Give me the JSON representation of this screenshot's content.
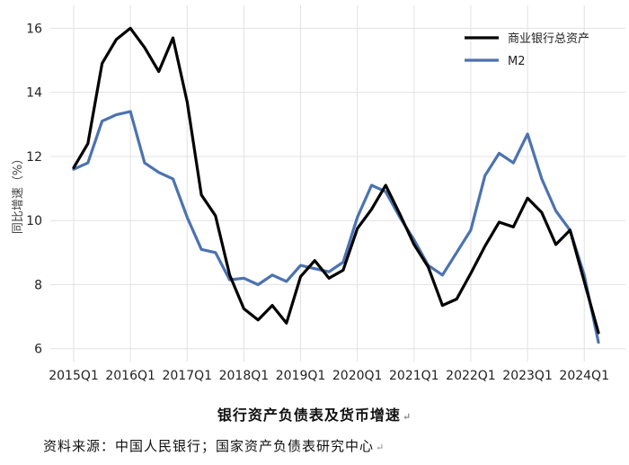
{
  "chart_data": {
    "type": "line",
    "title": "银行资产负债表及货币增速",
    "source": "资料来源：中国人民银行；国家资产负债表研究中心",
    "ylabel": "同比增速（%）",
    "xlabel": "",
    "ylim": [
      5.6,
      16.6
    ],
    "yticks": [
      6,
      8,
      10,
      12,
      14,
      16
    ],
    "xtick_labels": [
      "2015Q1",
      "2016Q1",
      "2017Q1",
      "2018Q1",
      "2019Q1",
      "2020Q1",
      "2021Q1",
      "2022Q1",
      "2023Q1",
      "2024Q1"
    ],
    "grid": true,
    "legend_position": "top-right",
    "x": [
      "2015Q1",
      "2015Q2",
      "2015Q3",
      "2015Q4",
      "2016Q1",
      "2016Q2",
      "2016Q3",
      "2016Q4",
      "2017Q1",
      "2017Q2",
      "2017Q3",
      "2017Q4",
      "2018Q1",
      "2018Q2",
      "2018Q3",
      "2018Q4",
      "2019Q1",
      "2019Q2",
      "2019Q3",
      "2019Q4",
      "2020Q1",
      "2020Q2",
      "2020Q3",
      "2020Q4",
      "2021Q1",
      "2021Q2",
      "2021Q3",
      "2021Q4",
      "2022Q1",
      "2022Q2",
      "2022Q3",
      "2022Q4",
      "2023Q1",
      "2023Q2",
      "2023Q3",
      "2023Q4",
      "2024Q1",
      "2024Q2"
    ],
    "series": [
      {
        "name": "商业银行总资产",
        "color": "#000000",
        "values": [
          11.65,
          12.4,
          14.9,
          15.65,
          16.0,
          15.4,
          14.65,
          15.7,
          13.7,
          10.8,
          10.15,
          8.3,
          7.25,
          6.9,
          7.35,
          6.8,
          8.25,
          8.75,
          8.2,
          8.45,
          9.75,
          10.35,
          11.1,
          10.2,
          9.25,
          8.55,
          7.35,
          7.55,
          8.35,
          9.2,
          9.95,
          9.8,
          10.7,
          10.25,
          9.25,
          9.7,
          8.1,
          6.5
        ]
      },
      {
        "name": "M2",
        "color": "#4c72b0",
        "values": [
          11.6,
          11.8,
          13.1,
          13.3,
          13.4,
          11.8,
          11.5,
          11.3,
          10.1,
          9.1,
          9.0,
          8.15,
          8.2,
          8.0,
          8.3,
          8.1,
          8.6,
          8.5,
          8.4,
          8.7,
          10.1,
          11.1,
          10.9,
          10.1,
          9.4,
          8.6,
          8.3,
          9.0,
          9.7,
          11.4,
          12.1,
          11.8,
          12.7,
          11.3,
          10.3,
          9.7,
          8.3,
          6.2
        ]
      }
    ]
  }
}
